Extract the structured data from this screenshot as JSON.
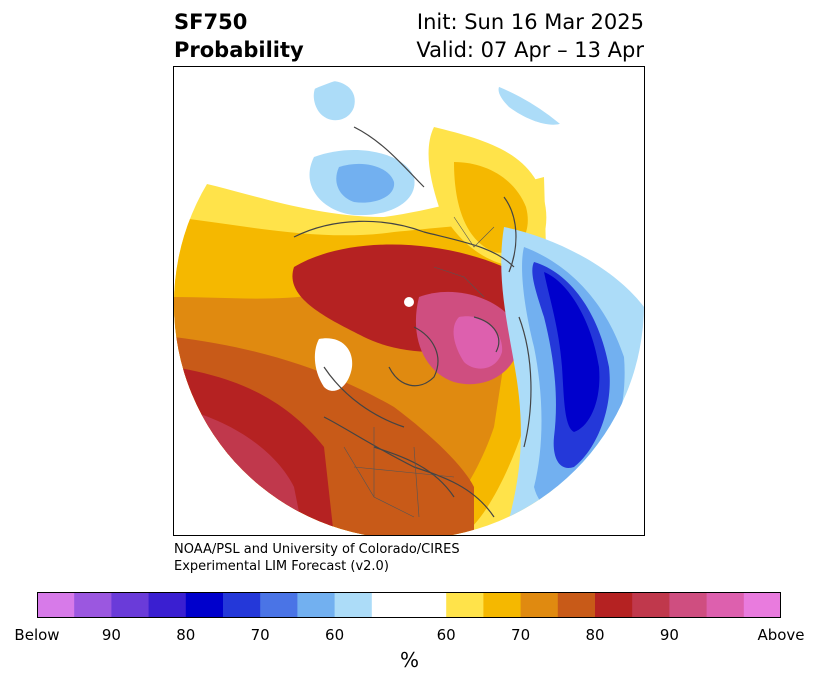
{
  "title": {
    "left_line1": "SF750",
    "left_line2": "Probability",
    "right_line1": "Init: Sun 16 Mar 2025",
    "right_line2": "Valid: 07 Apr – 13 Apr"
  },
  "credit": {
    "line1": "NOAA/PSL and University of Colorado/CIRES",
    "line2": "Experimental LIM Forecast (v2.0)"
  },
  "colorbar": {
    "colors": [
      "#d77ae9",
      "#9b57e0",
      "#6a3bd9",
      "#3a1fd1",
      "#0000cc",
      "#2438d9",
      "#4a74e6",
      "#72b0f0",
      "#acdcf8",
      "#ffffff",
      "#ffe34a",
      "#f5b800",
      "#e08a10",
      "#c85a18",
      "#b52222",
      "#c0384c",
      "#cf4e80",
      "#dd60ae",
      "#e97bde"
    ],
    "tick_labels": [
      "Below",
      "90",
      "80",
      "70",
      "60",
      "60",
      "70",
      "80",
      "90",
      "Above"
    ],
    "unit": "%"
  },
  "map_colors": {
    "below_light": "#acdcf8",
    "below_mid": "#72b0f0",
    "below_strong": "#2438d9",
    "below_core": "#0000cc",
    "above_light": "#ffe34a",
    "above_mid": "#f5b800",
    "above_orange": "#e08a10",
    "above_brown": "#c85a18",
    "above_red": "#b52222",
    "above_crimson": "#c0384c",
    "above_pink": "#cf4e80",
    "above_magenta": "#dd60ae",
    "coastline": "#444444"
  }
}
